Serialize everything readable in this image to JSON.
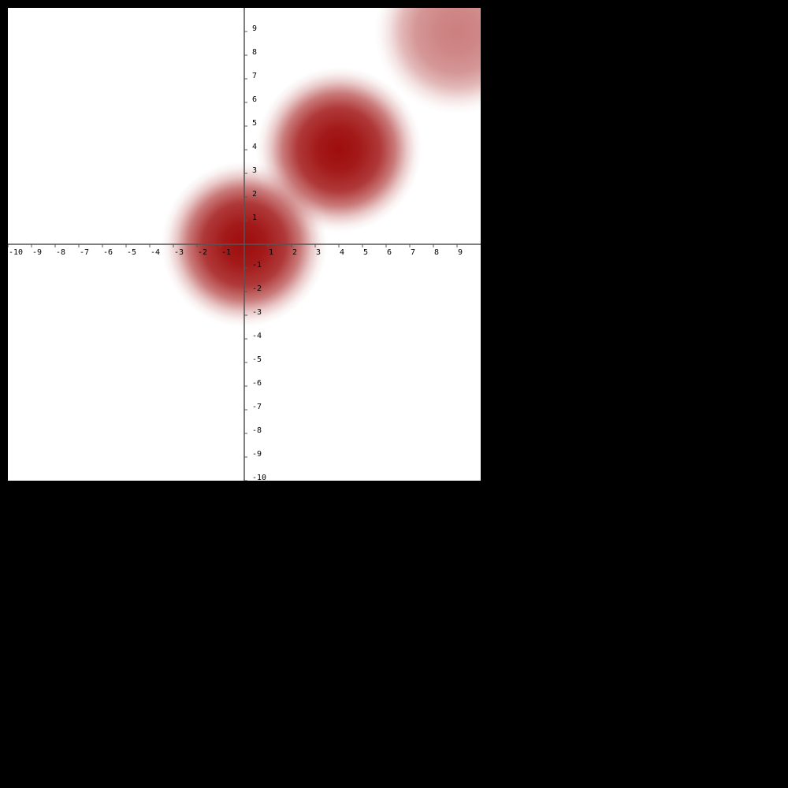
{
  "chart_data": {
    "type": "heatmap",
    "title": "",
    "xlabel": "",
    "ylabel": "",
    "xlim": [
      -10,
      10
    ],
    "ylim": [
      -10,
      10
    ],
    "grid": false,
    "background_color": "#ffffff",
    "heat_color": "#990000",
    "axis_color": "#555555",
    "x_tick_labels": [
      "-10",
      "-9",
      "-8",
      "-7",
      "-6",
      "-5",
      "-4",
      "-3",
      "-2",
      "-1",
      "1",
      "2",
      "3",
      "4",
      "5",
      "6",
      "7",
      "8",
      "9"
    ],
    "y_tick_labels": [
      "9",
      "8",
      "7",
      "6",
      "5",
      "4",
      "3",
      "2",
      "1",
      "-1",
      "-2",
      "-3",
      "-4",
      "-5",
      "-6",
      "-7",
      "-8",
      "-9",
      "-10"
    ],
    "blobs": [
      {
        "x": 0.0,
        "y": 0.0,
        "radius": 3.5,
        "intensity": 0.95
      },
      {
        "x": 4.0,
        "y": 4.0,
        "radius": 3.5,
        "intensity": 0.95
      },
      {
        "x": 9.0,
        "y": 9.0,
        "radius": 3.5,
        "intensity": 0.5
      }
    ]
  }
}
